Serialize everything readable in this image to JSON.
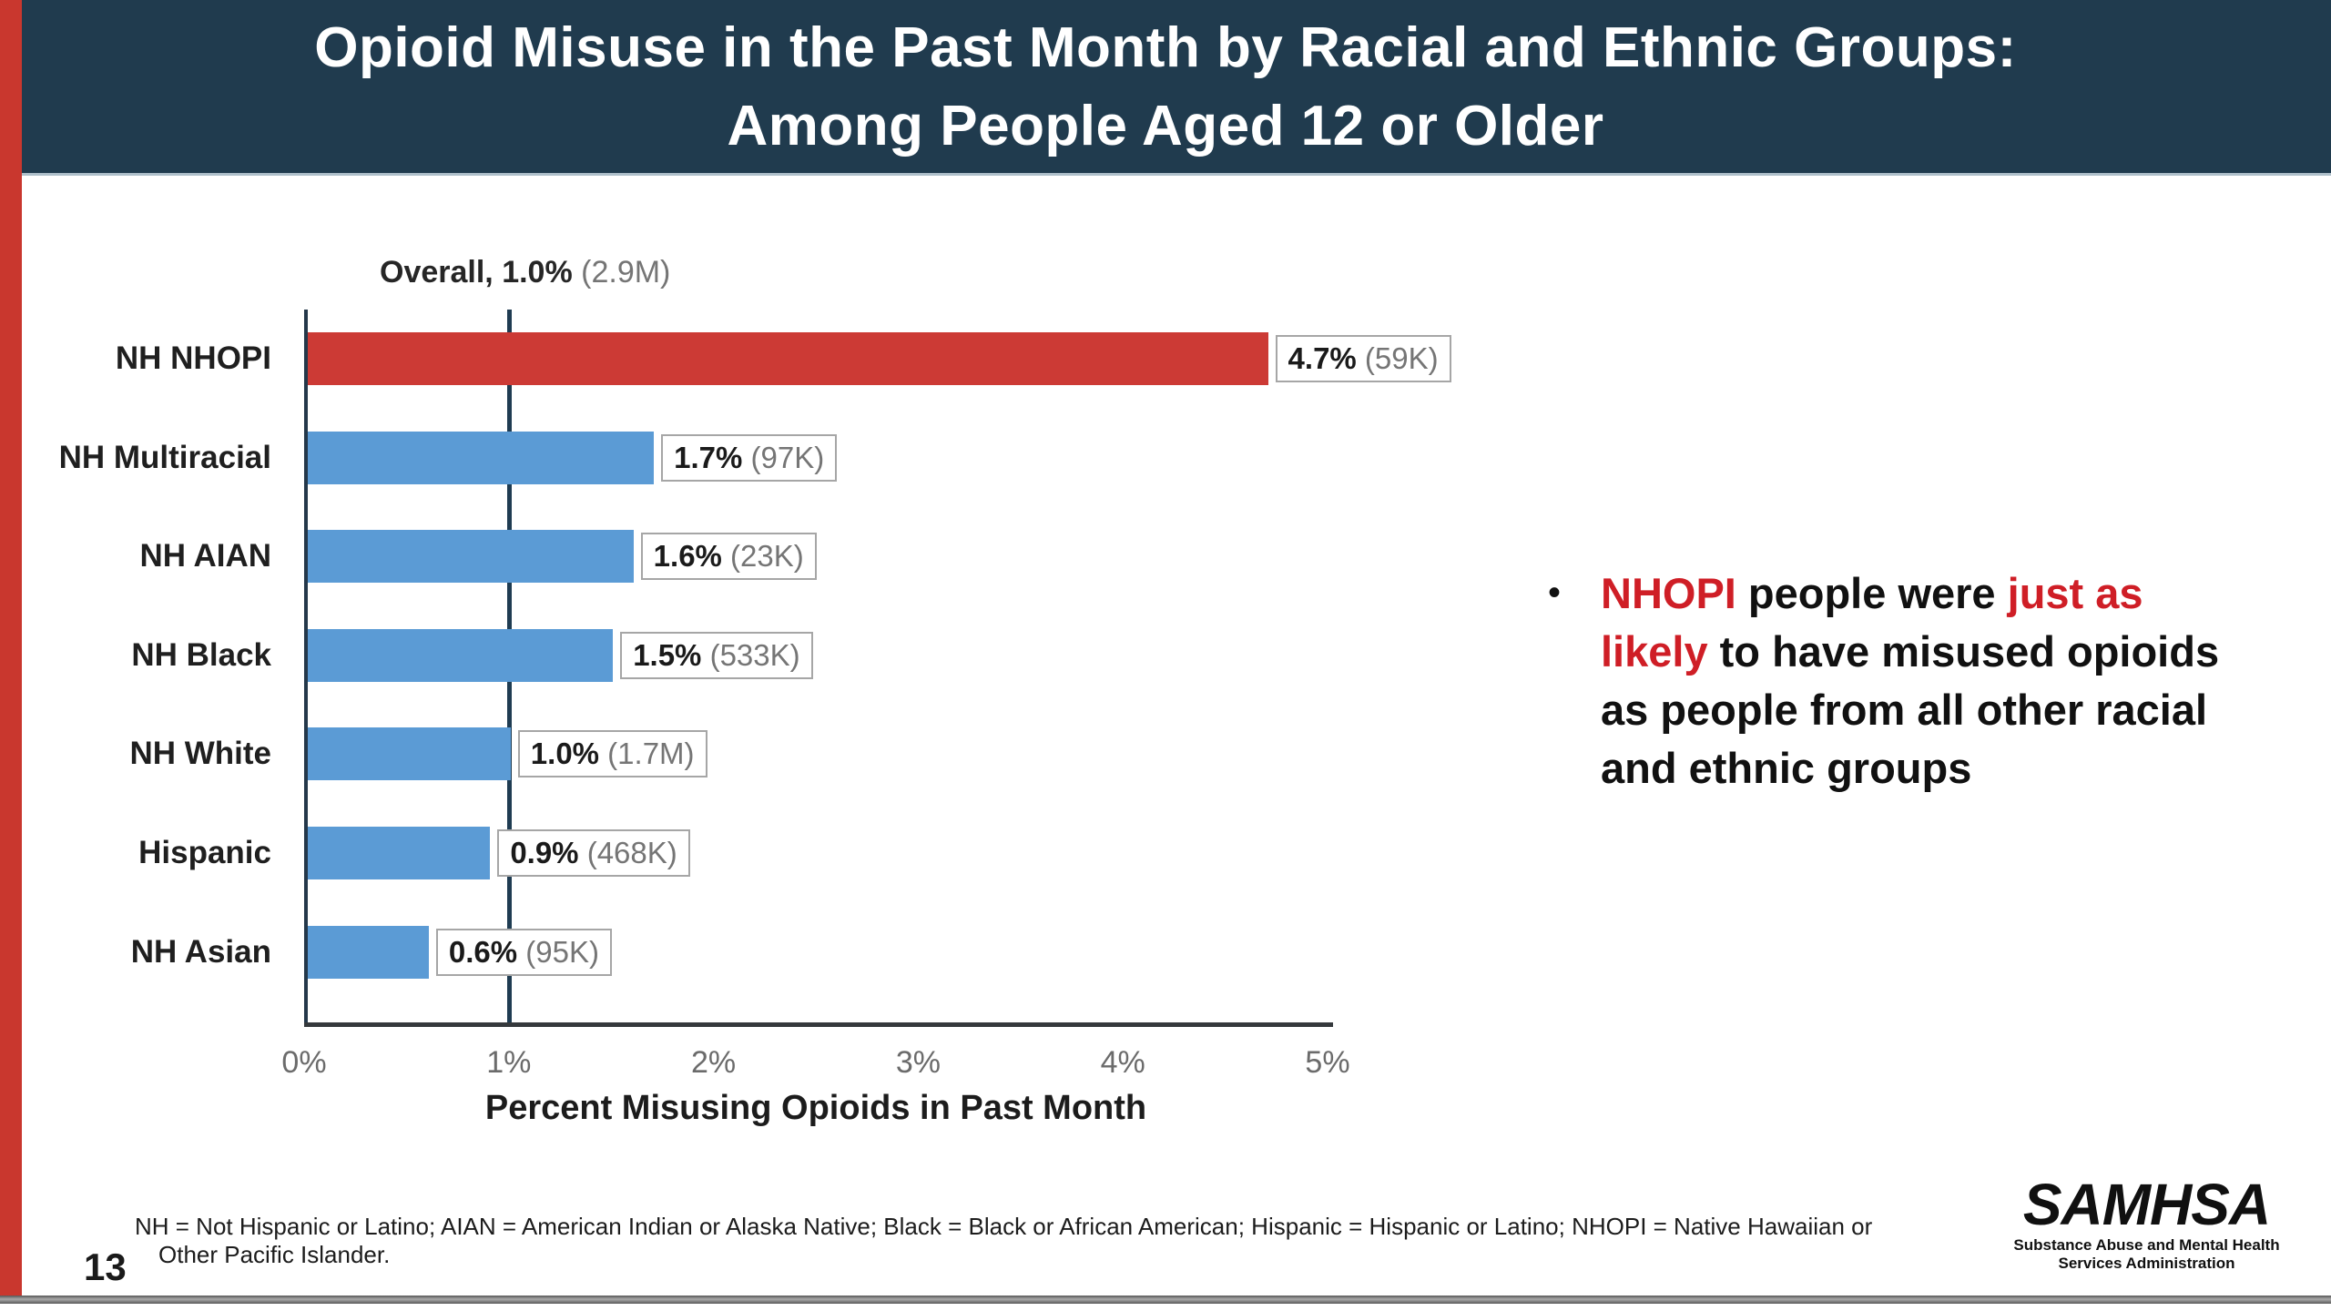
{
  "slide": {
    "page_number": "13",
    "title": {
      "line1": "Opioid Misuse in the Past Month by Racial and Ethnic Groups:",
      "line2": "Among People Aged 12 or Older"
    },
    "bullet": {
      "dot": "•",
      "lines": [
        [
          {
            "text": "NHOPI",
            "red": true
          },
          {
            "text": " people were ",
            "red": false
          },
          {
            "text": "just as",
            "red": true
          }
        ],
        [
          {
            "text": "likely",
            "red": true
          },
          {
            "text": " to have misused opioids",
            "red": false
          }
        ],
        [
          {
            "text": "as people from all other racial",
            "red": false
          }
        ],
        [
          {
            "text": "and ethnic groups",
            "red": false
          }
        ]
      ]
    },
    "footnote": {
      "line1": "NH = Not Hispanic or Latino; AIAN = American Indian or Alaska Native; Black = Black or African American; Hispanic = Hispanic or Latino; NHOPI = Native Hawaiian or",
      "line2": "Other Pacific Islander."
    },
    "logo": {
      "name": "SAMHSA",
      "sub1": "Substance Abuse and Mental Health",
      "sub2": "Services Administration"
    }
  },
  "chart_data": {
    "type": "bar",
    "orientation": "horizontal",
    "title": "Opioid Misuse in the Past Month by Racial and Ethnic Groups: Among People Aged 12 or Older",
    "xlabel": "Percent Misusing Opioids in Past Month",
    "xlim": [
      0,
      5
    ],
    "x_ticks": [
      "0%",
      "1%",
      "2%",
      "3%",
      "4%",
      "5%"
    ],
    "grid": false,
    "overall_reference": {
      "value": 1.0,
      "label_bold": "Overall, 1.0%",
      "label_count": "(2.9M)"
    },
    "categories": [
      "NH NHOPI",
      "NH Multiracial",
      "NH AIAN",
      "NH Black",
      "NH White",
      "Hispanic",
      "NH Asian"
    ],
    "values": [
      4.7,
      1.7,
      1.6,
      1.5,
      1.0,
      0.9,
      0.6
    ],
    "rows": [
      {
        "label": "NH NHOPI",
        "value": 4.7,
        "pct": "4.7%",
        "count": "(59K)",
        "highlight": true
      },
      {
        "label": "NH Multiracial",
        "value": 1.7,
        "pct": "1.7%",
        "count": "(97K)",
        "highlight": false
      },
      {
        "label": "NH AIAN",
        "value": 1.6,
        "pct": "1.6%",
        "count": "(23K)",
        "highlight": false
      },
      {
        "label": "NH Black",
        "value": 1.5,
        "pct": "1.5%",
        "count": "(533K)",
        "highlight": false
      },
      {
        "label": "NH White",
        "value": 1.0,
        "pct": "1.0%",
        "count": "(1.7M)",
        "highlight": false
      },
      {
        "label": "Hispanic",
        "value": 0.9,
        "pct": "0.9%",
        "count": "(468K)",
        "highlight": false
      },
      {
        "label": "NH Asian",
        "value": 0.6,
        "pct": "0.6%",
        "count": "(95K)",
        "highlight": false
      }
    ]
  },
  "colors": {
    "header_navy": "#203b4e",
    "accent_red_strip": "#c9372e",
    "bar_blue": "#5b9bd5",
    "bar_red": "#cc3a35",
    "reference_line_navy": "#1f3c52",
    "bullet_text_red": "#cf1e26"
  }
}
